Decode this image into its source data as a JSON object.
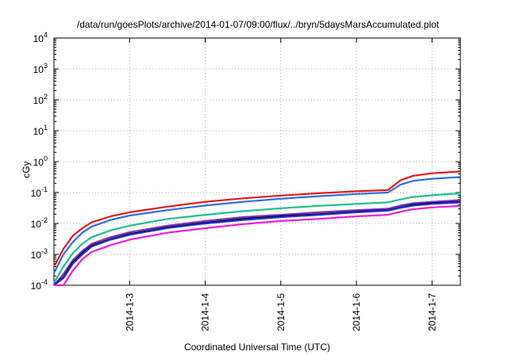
{
  "chart_data": {
    "type": "line",
    "title": "/data/run/goesPlots/archive/2014-01-07/09:00/flux/../bryn/5daysMarsAccumulated.plot",
    "xlabel": "Coordinated Universal Time (UTC)",
    "ylabel": "cGy",
    "yscale": "log",
    "ylim": [
      0.0001,
      10000
    ],
    "xlim": [
      "2014-01-02T00:00",
      "2014-01-07T09:00"
    ],
    "grid": true,
    "xticks": [
      {
        "value": "2014-01-03T00:00",
        "label": "2014-1-3"
      },
      {
        "value": "2014-01-04T00:00",
        "label": "2014-1-4"
      },
      {
        "value": "2014-01-05T00:00",
        "label": "2014-1-5"
      },
      {
        "value": "2014-01-06T00:00",
        "label": "2014-1-6"
      },
      {
        "value": "2014-01-07T00:00",
        "label": "2014-1-7"
      }
    ],
    "yticks": [
      {
        "value": 0.0001,
        "base": "10",
        "exp": "-4"
      },
      {
        "value": 0.001,
        "base": "10",
        "exp": "-3"
      },
      {
        "value": 0.01,
        "base": "10",
        "exp": "-2"
      },
      {
        "value": 0.1,
        "base": "10",
        "exp": "-1"
      },
      {
        "value": 1,
        "base": "10",
        "exp": "0"
      },
      {
        "value": 10,
        "base": "10",
        "exp": "1"
      },
      {
        "value": 100,
        "base": "10",
        "exp": "2"
      },
      {
        "value": 1000,
        "base": "10",
        "exp": "3"
      },
      {
        "value": 10000,
        "base": "10",
        "exp": "4"
      }
    ],
    "x": [
      "2014-01-02T00:00",
      "2014-01-02T03:00",
      "2014-01-02T06:00",
      "2014-01-02T09:00",
      "2014-01-02T12:00",
      "2014-01-02T18:00",
      "2014-01-03T00:00",
      "2014-01-03T12:00",
      "2014-01-04T00:00",
      "2014-01-04T12:00",
      "2014-01-05T00:00",
      "2014-01-05T12:00",
      "2014-01-06T00:00",
      "2014-01-06T10:00",
      "2014-01-06T14:00",
      "2014-01-06T18:00",
      "2014-01-07T00:00",
      "2014-01-07T09:00"
    ],
    "series": [
      {
        "color": "#e41a1c",
        "values": [
          0.0004,
          0.0015,
          0.004,
          0.007,
          0.011,
          0.017,
          0.023,
          0.035,
          0.05,
          0.065,
          0.08,
          0.095,
          0.11,
          0.12,
          0.25,
          0.35,
          0.42,
          0.48
        ]
      },
      {
        "color": "#2b6fe0",
        "values": [
          0.00025,
          0.001,
          0.0025,
          0.005,
          0.008,
          0.013,
          0.018,
          0.027,
          0.038,
          0.05,
          0.063,
          0.076,
          0.09,
          0.1,
          0.18,
          0.24,
          0.28,
          0.32
        ]
      },
      {
        "color": "#1fbf8f",
        "values": [
          0.00012,
          0.0004,
          0.0011,
          0.0022,
          0.0036,
          0.006,
          0.0085,
          0.014,
          0.019,
          0.025,
          0.031,
          0.037,
          0.043,
          0.048,
          0.06,
          0.072,
          0.082,
          0.095
        ]
      },
      {
        "color": "#f2c419",
        "values": [
          6e-05,
          0.0002,
          0.0006,
          0.0012,
          0.002,
          0.0033,
          0.0047,
          0.0078,
          0.011,
          0.014,
          0.018,
          0.021,
          0.025,
          0.028,
          0.035,
          0.042,
          0.047,
          0.053
        ]
      },
      {
        "color": "#7b2fbe",
        "values": [
          7e-05,
          0.00023,
          0.00065,
          0.0013,
          0.0022,
          0.0036,
          0.0052,
          0.0085,
          0.012,
          0.016,
          0.019,
          0.023,
          0.027,
          0.03,
          0.038,
          0.045,
          0.05,
          0.057
        ]
      },
      {
        "color": "#000000",
        "values": [
          5e-05,
          0.00018,
          0.00055,
          0.0011,
          0.0019,
          0.0031,
          0.0045,
          0.0074,
          0.0105,
          0.014,
          0.017,
          0.02,
          0.024,
          0.027,
          0.033,
          0.04,
          0.045,
          0.05
        ]
      },
      {
        "color": "#1a2fd9",
        "values": [
          5e-05,
          0.00017,
          0.0005,
          0.001,
          0.0018,
          0.003,
          0.0043,
          0.0071,
          0.01,
          0.013,
          0.016,
          0.019,
          0.023,
          0.026,
          0.032,
          0.038,
          0.043,
          0.048
        ]
      },
      {
        "color": "#ee1ee0",
        "values": [
          2e-05,
          9e-05,
          0.0003,
          0.0007,
          0.0012,
          0.002,
          0.003,
          0.005,
          0.007,
          0.0095,
          0.012,
          0.014,
          0.017,
          0.019,
          0.024,
          0.029,
          0.033,
          0.037
        ]
      }
    ]
  }
}
